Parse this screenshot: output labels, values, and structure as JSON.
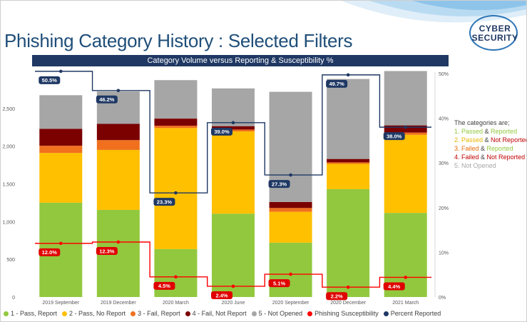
{
  "header": {
    "title": "Phishing Category History : Selected Filters",
    "subtitle": "Category Volume versus Reporting & Susceptibility %",
    "logo_line1": "CYBER",
    "logo_line2": "SECURITY"
  },
  "side_legend": {
    "heading": "The categories are;",
    "items": [
      {
        "prefix": "1. ",
        "a": "Passed",
        "amp": " & ",
        "b": "Reported",
        "color_a": "#92c83e",
        "color_b": "#92c83e"
      },
      {
        "prefix": "2. ",
        "a": "Passed",
        "amp": " & ",
        "b": "Not Reported",
        "color_a": "#e8b400",
        "color_b": "#c00000"
      },
      {
        "prefix": "3. ",
        "a": "Failed",
        "amp": " & ",
        "b": "Reported",
        "color_a": "#e46c0a",
        "color_b": "#92c83e"
      },
      {
        "prefix": "4. ",
        "a": "Failed",
        "amp": " & ",
        "b": "Not Reported",
        "color_a": "#c00000",
        "color_b": "#c00000"
      },
      {
        "prefix": "5. ",
        "a": "Not Opened",
        "amp": "",
        "b": "",
        "color_a": "#a6a6a6",
        "color_b": "#a6a6a6"
      }
    ]
  },
  "chart_data": {
    "type": "bar",
    "stacked": true,
    "categories": [
      "2019 September",
      "2019 December",
      "2020 March",
      "2020 June",
      "2020 September",
      "2020 December",
      "2021 March"
    ],
    "ylim": [
      0,
      3000
    ],
    "y_ticks": [
      0,
      500,
      1000,
      1500,
      2000,
      2500
    ],
    "y_tick_labels": [
      "0",
      "500",
      "1,000",
      "1,500",
      "2,000",
      "2,500"
    ],
    "y2lim": [
      0,
      50
    ],
    "y2_ticks": [
      0,
      10,
      20,
      30,
      40,
      50
    ],
    "y2_tick_labels": [
      "0%",
      "10%",
      "20%",
      "30%",
      "40%",
      "50%"
    ],
    "series": [
      {
        "name": "1 - Pass, Report",
        "color": "#92c83e",
        "values": [
          1250,
          1155,
          635,
          1105,
          720,
          1430,
          1115
        ]
      },
      {
        "name": "2 - Pass, No Report",
        "color": "#ffc000",
        "values": [
          660,
          795,
          1605,
          1090,
          410,
          335,
          1035
        ]
      },
      {
        "name": "3 - Fail, Report",
        "color": "#f0701e",
        "values": [
          95,
          130,
          30,
          25,
          50,
          20,
          30
        ]
      },
      {
        "name": "4 - Fail, Not Report",
        "color": "#7b0000",
        "values": [
          225,
          215,
          95,
          45,
          80,
          45,
          95
        ]
      },
      {
        "name": "5 - Not Opened",
        "color": "#a6a6a6",
        "values": [
          445,
          430,
          510,
          500,
          1460,
          1060,
          720
        ]
      }
    ],
    "lines": [
      {
        "name": "Phishing Susceptibility",
        "color": "#ff0000",
        "values": [
          12.0,
          12.3,
          4.5,
          2.4,
          5.1,
          2.2,
          4.4
        ],
        "labels": [
          "12.0%",
          "12.3%",
          "4.5%",
          "2.4%",
          "5.1%",
          "2.2%",
          "4.4%"
        ]
      },
      {
        "name": "Percent Reported",
        "color": "#1f3864",
        "values": [
          50.5,
          46.2,
          23.3,
          39.0,
          27.3,
          49.7,
          38.0
        ],
        "labels": [
          "50.5%",
          "46.2%",
          "23.3%",
          "39.0%",
          "27.3%",
          "49.7%",
          "38.0%"
        ]
      }
    ]
  }
}
